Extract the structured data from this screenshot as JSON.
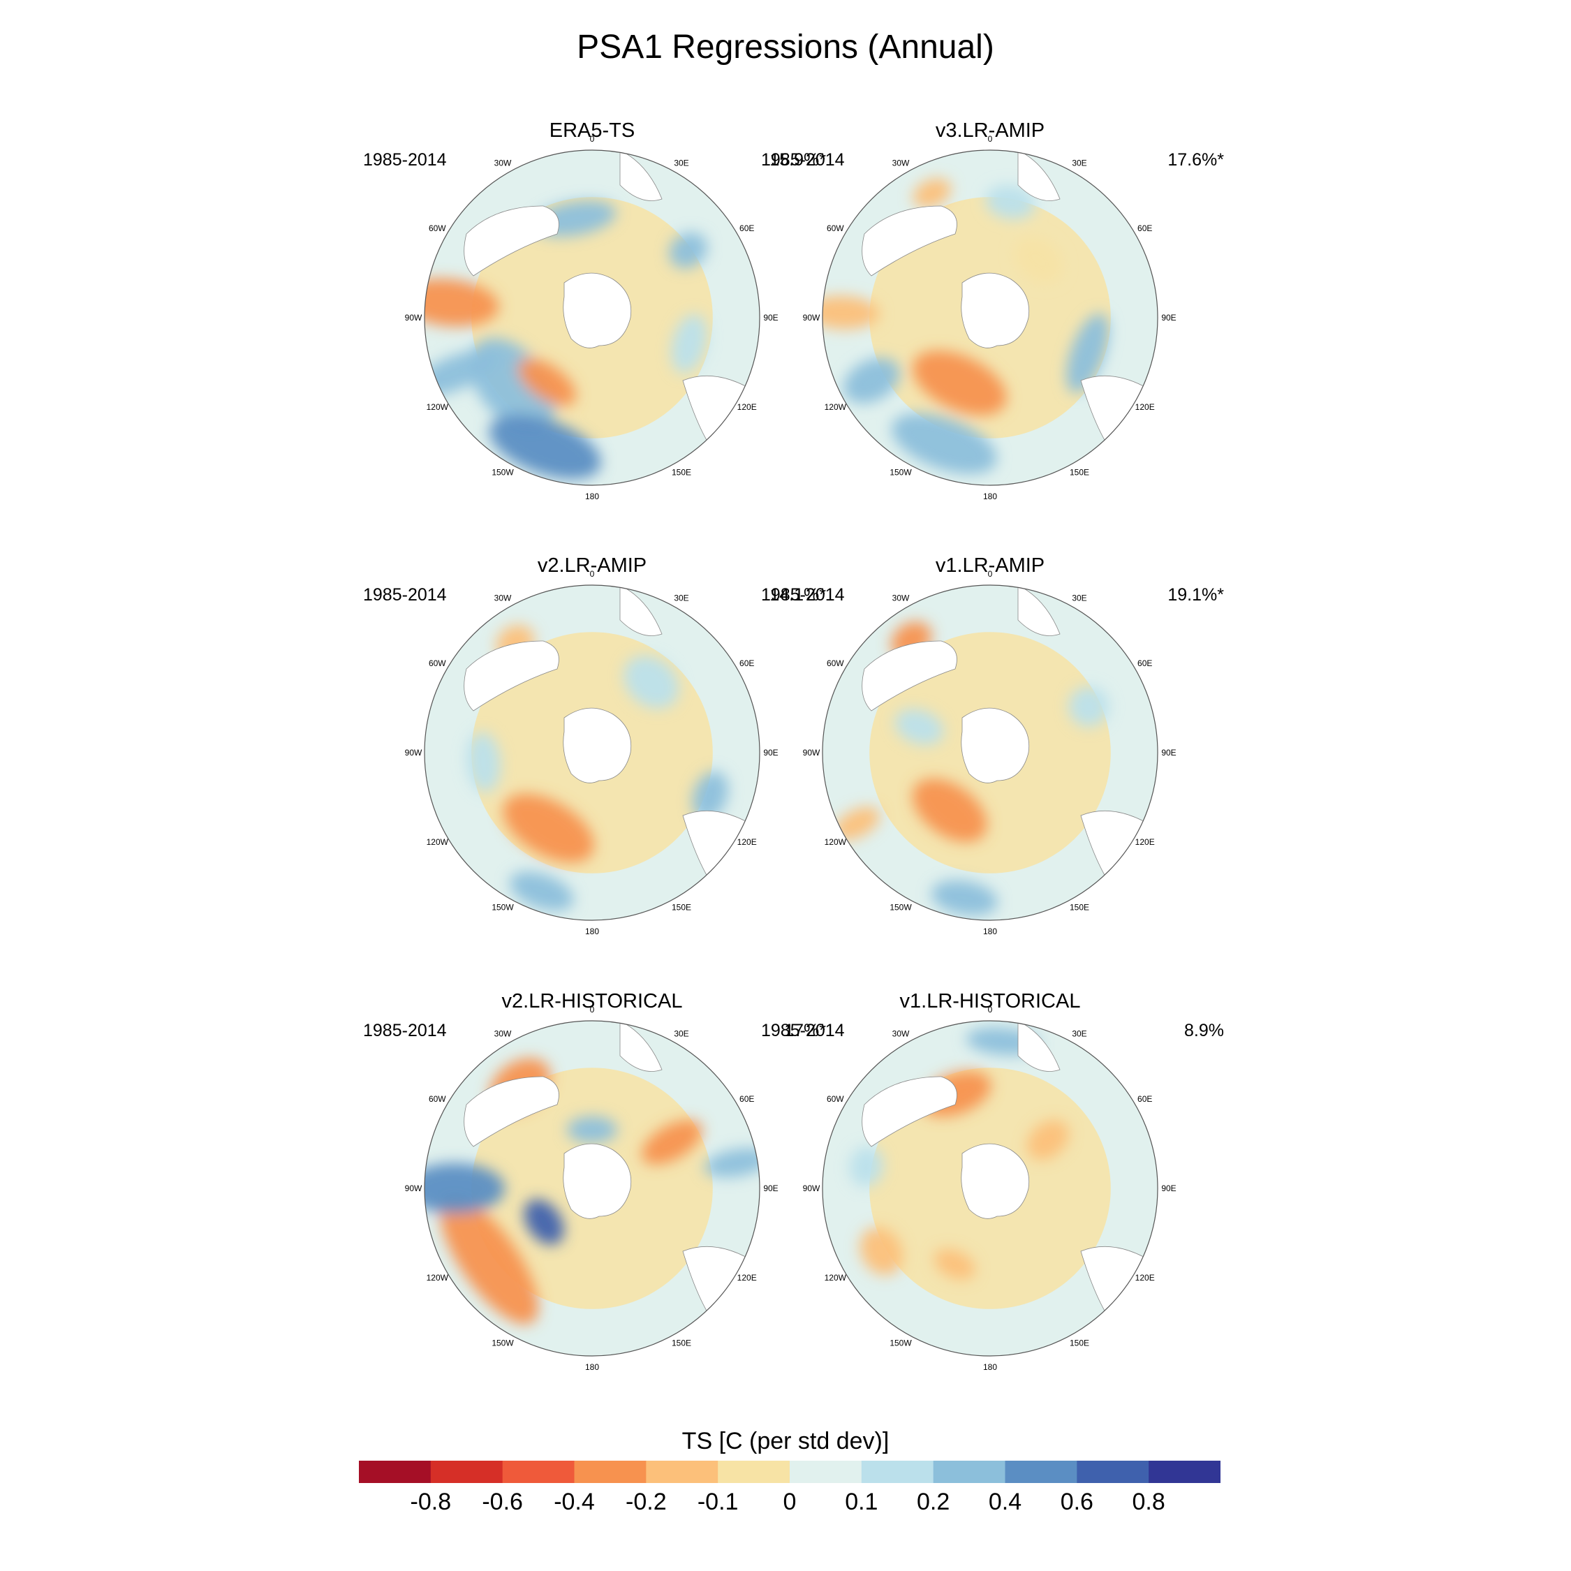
{
  "title": "PSA1 Regressions (Annual)",
  "panels": [
    {
      "name": "ERA5-TS",
      "years": "1985-2014",
      "pct": "15.9%*",
      "blobs": [
        {
          "a": -84,
          "r": 0.86,
          "rx": 0.14,
          "ry": 0.3,
          "lvl": -0.4
        },
        {
          "a": -130,
          "r": 0.62,
          "rx": 0.32,
          "ry": 0.2,
          "lvl": 0.2
        },
        {
          "a": -160,
          "r": 0.82,
          "rx": 0.35,
          "ry": 0.16,
          "lvl": 0.4
        },
        {
          "a": -112,
          "r": 0.88,
          "rx": 0.1,
          "ry": 0.28,
          "lvl": 0.2
        },
        {
          "a": -145,
          "r": 0.47,
          "rx": 0.2,
          "ry": 0.1,
          "lvl": -0.4
        },
        {
          "a": -10,
          "r": 0.6,
          "rx": 0.25,
          "ry": 0.1,
          "lvl": 0.2
        },
        {
          "a": 105,
          "r": 0.6,
          "rx": 0.18,
          "ry": 0.1,
          "lvl": 0.1
        },
        {
          "a": 55,
          "r": 0.7,
          "rx": 0.1,
          "ry": 0.12,
          "lvl": 0.2
        }
      ]
    },
    {
      "name": "v3.LR-AMIP",
      "years": "1985-2014",
      "pct": "17.6%*",
      "blobs": [
        {
          "a": -155,
          "r": 0.43,
          "rx": 0.3,
          "ry": 0.16,
          "lvl": -0.4
        },
        {
          "a": -88,
          "r": 0.88,
          "rx": 0.1,
          "ry": 0.22,
          "lvl": -0.2
        },
        {
          "a": -160,
          "r": 0.8,
          "rx": 0.33,
          "ry": 0.15,
          "lvl": 0.2
        },
        {
          "a": -118,
          "r": 0.8,
          "rx": 0.12,
          "ry": 0.18,
          "lvl": 0.2
        },
        {
          "a": 110,
          "r": 0.62,
          "rx": 0.25,
          "ry": 0.1,
          "lvl": 0.2
        },
        {
          "a": 40,
          "r": 0.45,
          "rx": 0.16,
          "ry": 0.12,
          "lvl": -0.1
        },
        {
          "a": -25,
          "r": 0.82,
          "rx": 0.12,
          "ry": 0.08,
          "lvl": -0.2
        },
        {
          "a": 10,
          "r": 0.7,
          "rx": 0.15,
          "ry": 0.1,
          "lvl": 0.1
        }
      ]
    },
    {
      "name": "v2.LR-AMIP",
      "years": "1985-2014",
      "pct": "14.1%*",
      "blobs": [
        {
          "a": -150,
          "r": 0.52,
          "rx": 0.3,
          "ry": 0.16,
          "lvl": -0.4
        },
        {
          "a": -160,
          "r": 0.88,
          "rx": 0.2,
          "ry": 0.1,
          "lvl": 0.2
        },
        {
          "a": -35,
          "r": 0.8,
          "rx": 0.12,
          "ry": 0.1,
          "lvl": -0.2
        },
        {
          "a": 110,
          "r": 0.75,
          "rx": 0.15,
          "ry": 0.1,
          "lvl": 0.2
        },
        {
          "a": -95,
          "r": 0.65,
          "rx": 0.18,
          "ry": 0.1,
          "lvl": 0.1
        },
        {
          "a": 40,
          "r": 0.55,
          "rx": 0.18,
          "ry": 0.14,
          "lvl": 0.1
        }
      ]
    },
    {
      "name": "v1.LR-AMIP",
      "years": "1985-2014",
      "pct": "19.1%*",
      "blobs": [
        {
          "a": -145,
          "r": 0.42,
          "rx": 0.25,
          "ry": 0.15,
          "lvl": -0.4
        },
        {
          "a": -35,
          "r": 0.82,
          "rx": 0.13,
          "ry": 0.1,
          "lvl": -0.4
        },
        {
          "a": -170,
          "r": 0.88,
          "rx": 0.2,
          "ry": 0.1,
          "lvl": 0.2
        },
        {
          "a": -118,
          "r": 0.9,
          "rx": 0.08,
          "ry": 0.15,
          "lvl": -0.2
        },
        {
          "a": -70,
          "r": 0.45,
          "rx": 0.1,
          "ry": 0.15,
          "lvl": 0.1
        },
        {
          "a": 65,
          "r": 0.65,
          "rx": 0.12,
          "ry": 0.12,
          "lvl": 0.1
        }
      ]
    },
    {
      "name": "v2.LR-HISTORICAL",
      "years": "1985-2014",
      "pct": "17%*",
      "blobs": [
        {
          "a": -125,
          "r": 0.75,
          "rx": 0.45,
          "ry": 0.17,
          "lvl": -0.4
        },
        {
          "a": -90,
          "r": 0.82,
          "rx": 0.15,
          "ry": 0.3,
          "lvl": 0.4
        },
        {
          "a": -125,
          "r": 0.35,
          "rx": 0.15,
          "ry": 0.1,
          "lvl": 0.6
        },
        {
          "a": -35,
          "r": 0.75,
          "rx": 0.2,
          "ry": 0.14,
          "lvl": -0.4
        },
        {
          "a": 60,
          "r": 0.55,
          "rx": 0.1,
          "ry": 0.2,
          "lvl": -0.4
        },
        {
          "a": 80,
          "r": 0.88,
          "rx": 0.08,
          "ry": 0.2,
          "lvl": 0.2
        },
        {
          "a": 0,
          "r": 0.35,
          "rx": 0.15,
          "ry": 0.08,
          "lvl": 0.2
        }
      ]
    },
    {
      "name": "v1.LR-HISTORICAL",
      "years": "1985-2014",
      "pct": "8.9%",
      "blobs": [
        {
          "a": -20,
          "r": 0.6,
          "rx": 0.22,
          "ry": 0.12,
          "lvl": -0.4
        },
        {
          "a": 5,
          "r": 0.88,
          "rx": 0.22,
          "ry": 0.08,
          "lvl": 0.2
        },
        {
          "a": -120,
          "r": 0.75,
          "rx": 0.15,
          "ry": 0.12,
          "lvl": -0.2
        },
        {
          "a": -155,
          "r": 0.5,
          "rx": 0.13,
          "ry": 0.08,
          "lvl": -0.2
        },
        {
          "a": 50,
          "r": 0.45,
          "rx": 0.1,
          "ry": 0.14,
          "lvl": -0.2
        },
        {
          "a": -80,
          "r": 0.75,
          "rx": 0.12,
          "ry": 0.1,
          "lvl": 0.1
        }
      ]
    }
  ],
  "axis_labels": {
    "lon": [
      "0",
      "30E",
      "60E",
      "90E",
      "120E",
      "150E",
      "180",
      "150W",
      "120W",
      "90W",
      "60W",
      "30W"
    ]
  },
  "colorbar": {
    "title": "TS [C (per std dev)]",
    "colors": [
      "#a50f26",
      "#d62f27",
      "#ef5a3a",
      "#f7924f",
      "#fcc07a",
      "#f7e3a5",
      "#e1f1ee",
      "#bbe0eb",
      "#8cbfdb",
      "#5b8ec3",
      "#3f61ad",
      "#313695"
    ],
    "ticks": [
      "-0.8",
      "-0.6",
      "-0.4",
      "-0.2",
      "-0.1",
      "0",
      "0.1",
      "0.2",
      "0.4",
      "0.6",
      "0.8"
    ]
  }
}
